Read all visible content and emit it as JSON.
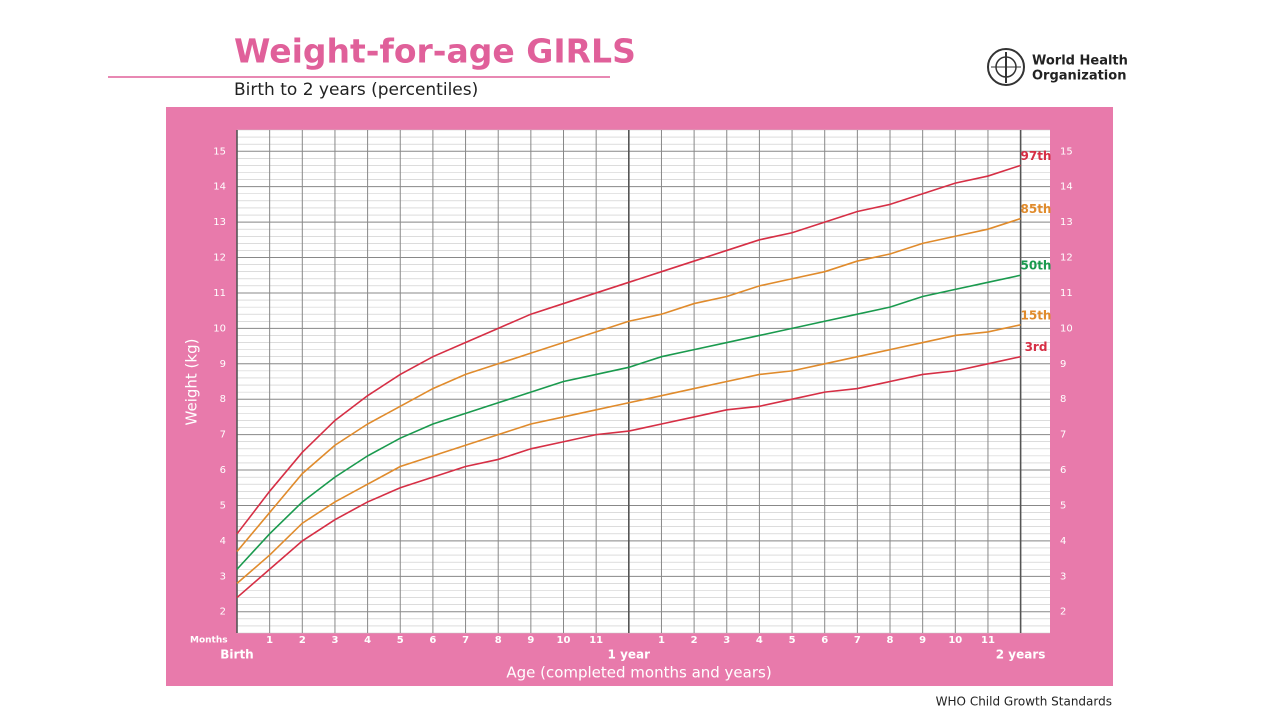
{
  "org": {
    "line1": "World Health",
    "line2": "Organization"
  },
  "footer": "WHO Child Growth Standards",
  "chart_data": {
    "type": "line",
    "title": "Weight-for-age GIRLS",
    "subtitle": "Birth to 2 years (percentiles)",
    "x_label": "Age (completed months and years)",
    "y_label": "Weight (kg)",
    "x_unit_label": "Months",
    "x": [
      0,
      1,
      2,
      3,
      4,
      5,
      6,
      7,
      8,
      9,
      10,
      11,
      12,
      13,
      14,
      15,
      16,
      17,
      18,
      19,
      20,
      21,
      22,
      23,
      24
    ],
    "xlim": [
      0,
      24.9
    ],
    "ylim": [
      1.4,
      15.6
    ],
    "xticks": [
      {
        "value": 0,
        "label": "Birth"
      },
      1,
      2,
      3,
      4,
      5,
      6,
      7,
      8,
      9,
      10,
      11,
      {
        "value": 12,
        "label": "1 year"
      },
      {
        "value": 13,
        "label": "1"
      },
      {
        "value": 14,
        "label": "2"
      },
      {
        "value": 15,
        "label": "3"
      },
      {
        "value": 16,
        "label": "4"
      },
      {
        "value": 17,
        "label": "5"
      },
      {
        "value": 18,
        "label": "6"
      },
      {
        "value": 19,
        "label": "7"
      },
      {
        "value": 20,
        "label": "8"
      },
      {
        "value": 21,
        "label": "9"
      },
      {
        "value": 22,
        "label": "10"
      },
      {
        "value": 23,
        "label": "11"
      },
      {
        "value": 24,
        "label": "2 years"
      }
    ],
    "yticks": [
      2,
      3,
      4,
      5,
      6,
      7,
      8,
      9,
      10,
      11,
      12,
      13,
      14,
      15
    ],
    "grid": true,
    "series": [
      {
        "name": "97th",
        "color": "#d62f45",
        "values": [
          4.2,
          5.4,
          6.5,
          7.4,
          8.1,
          8.7,
          9.2,
          9.6,
          10.0,
          10.4,
          10.7,
          11.0,
          11.3,
          11.6,
          11.9,
          12.2,
          12.5,
          12.7,
          13.0,
          13.3,
          13.5,
          13.8,
          14.1,
          14.3,
          14.6
        ]
      },
      {
        "name": "85th",
        "color": "#e08b2c",
        "values": [
          3.7,
          4.8,
          5.9,
          6.7,
          7.3,
          7.8,
          8.3,
          8.7,
          9.0,
          9.3,
          9.6,
          9.9,
          10.2,
          10.4,
          10.7,
          10.9,
          11.2,
          11.4,
          11.6,
          11.9,
          12.1,
          12.4,
          12.6,
          12.8,
          13.1
        ]
      },
      {
        "name": "50th",
        "color": "#1a9a4e",
        "values": [
          3.2,
          4.2,
          5.1,
          5.8,
          6.4,
          6.9,
          7.3,
          7.6,
          7.9,
          8.2,
          8.5,
          8.7,
          8.9,
          9.2,
          9.4,
          9.6,
          9.8,
          10.0,
          10.2,
          10.4,
          10.6,
          10.9,
          11.1,
          11.3,
          11.5
        ]
      },
      {
        "name": "15th",
        "color": "#e08b2c",
        "values": [
          2.8,
          3.6,
          4.5,
          5.1,
          5.6,
          6.1,
          6.4,
          6.7,
          7.0,
          7.3,
          7.5,
          7.7,
          7.9,
          8.1,
          8.3,
          8.5,
          8.7,
          8.8,
          9.0,
          9.2,
          9.4,
          9.6,
          9.8,
          9.9,
          10.1
        ]
      },
      {
        "name": "3rd",
        "color": "#d62f45",
        "values": [
          2.4,
          3.2,
          4.0,
          4.6,
          5.1,
          5.5,
          5.8,
          6.1,
          6.3,
          6.6,
          6.8,
          7.0,
          7.1,
          7.3,
          7.5,
          7.7,
          7.8,
          8.0,
          8.2,
          8.3,
          8.5,
          8.7,
          8.8,
          9.0,
          9.2
        ]
      }
    ]
  }
}
